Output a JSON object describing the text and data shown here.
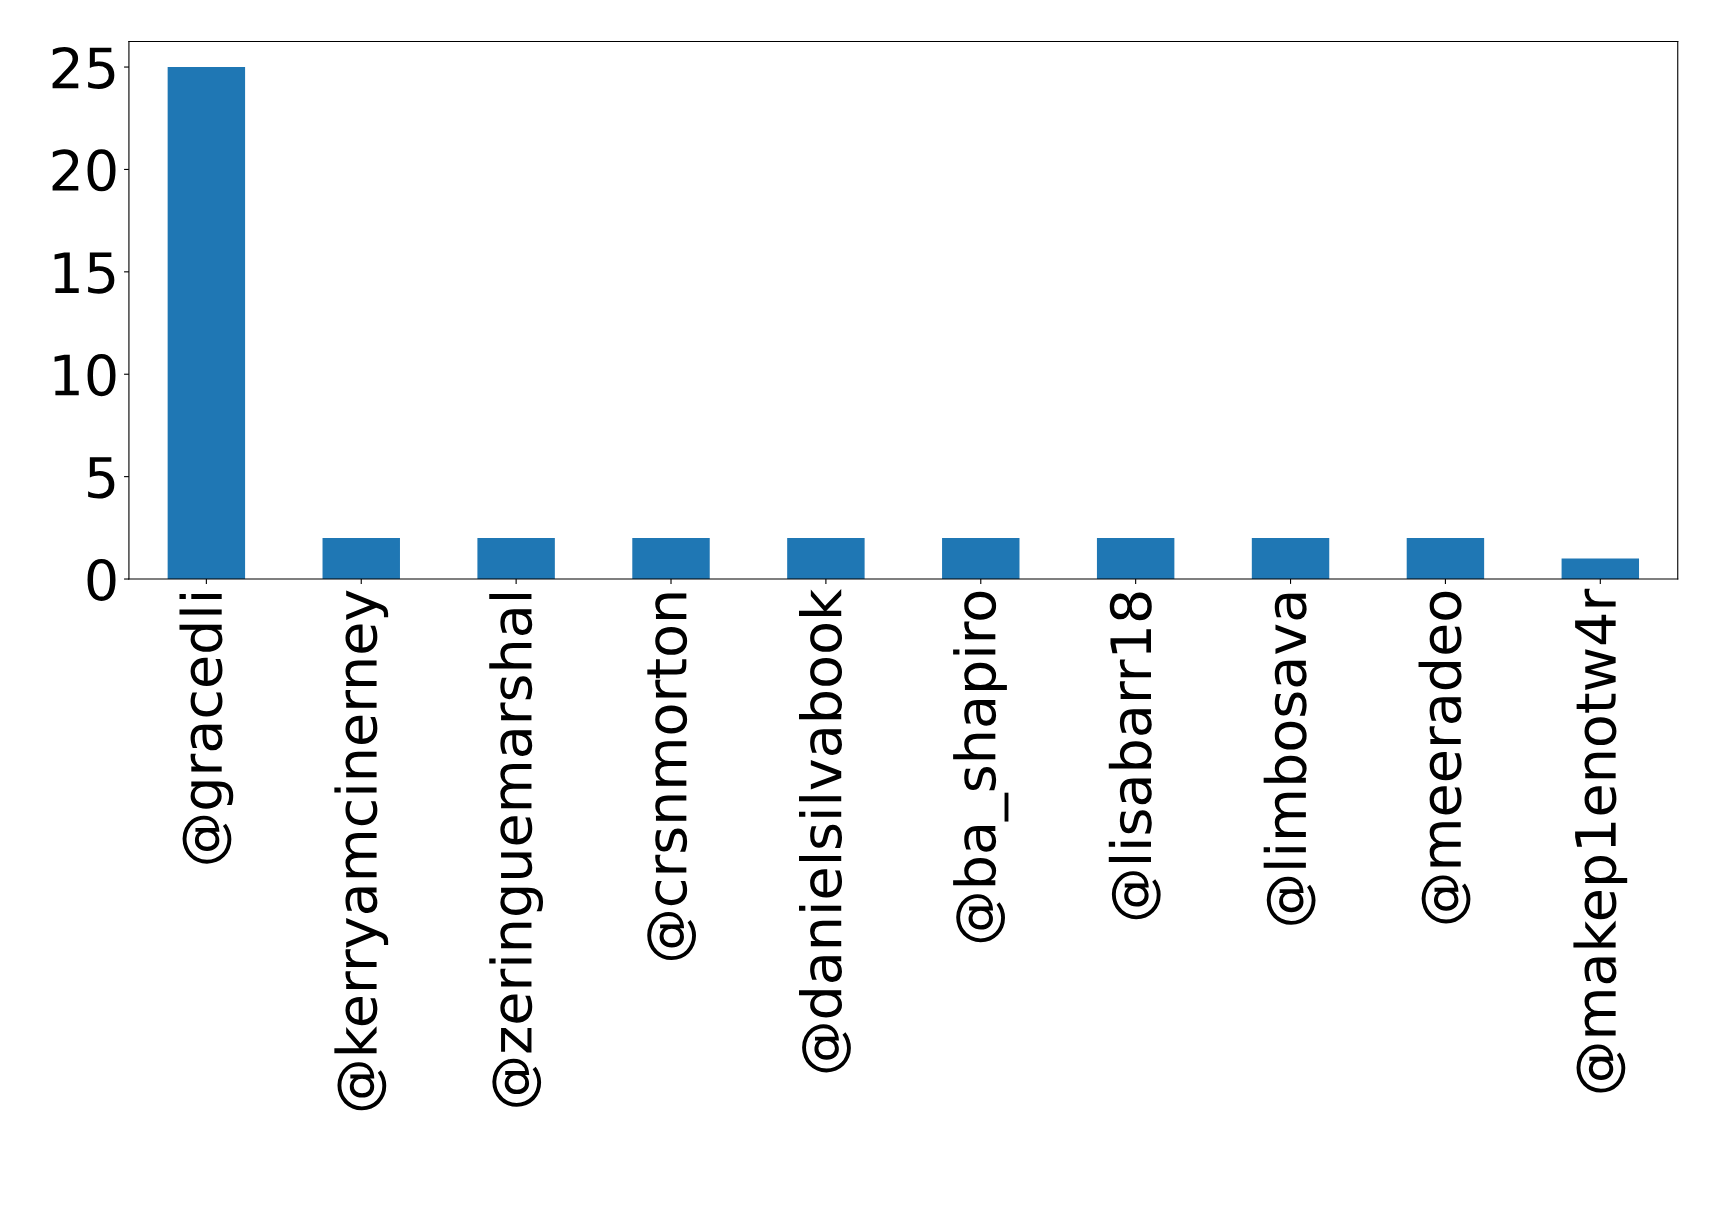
{
  "chart_data": {
    "type": "bar",
    "categories": [
      "@gracedli",
      "@kerryamcinerney",
      "@zeringuemarshal",
      "@crsnmorton",
      "@danielsilvabook",
      "@ba_shapiro",
      "@lisabarr18",
      "@limbosava",
      "@meeradeo",
      "@makep1enotw4r"
    ],
    "values": [
      25,
      2,
      2,
      2,
      2,
      2,
      2,
      2,
      2,
      1
    ],
    "color": "#1f77b4",
    "ylim": [
      0,
      26.25
    ],
    "yticks": [
      0,
      5,
      10,
      15,
      20,
      25
    ],
    "grid": false,
    "legend": false
  }
}
